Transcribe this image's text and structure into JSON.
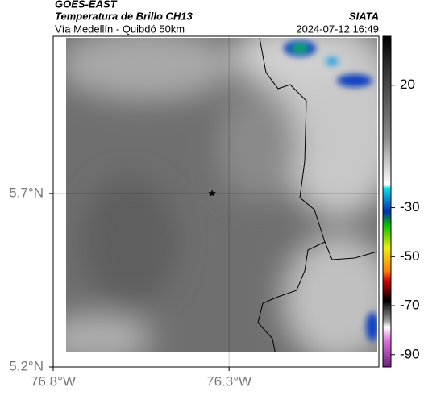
{
  "header": {
    "satellite": "GOES-EAST",
    "product": "Temperatura de Brillo CH13",
    "region": "Vía Medellín - Quibdó 50km",
    "source": "SIATA",
    "datetime": "2024-07-12 16:49"
  },
  "chart_data": {
    "type": "map",
    "xlim": [
      -76.8,
      -75.874
    ],
    "ylim": [
      5.2,
      6.153
    ],
    "xticks": [
      {
        "value": -76.8,
        "label": "76.8°W"
      },
      {
        "value": -76.3,
        "label": "76.3°W"
      }
    ],
    "yticks": [
      {
        "value": 5.2,
        "label": "5.2°N"
      },
      {
        "value": 5.7,
        "label": "5.7°N"
      }
    ],
    "grid": true,
    "marker": {
      "x": -76.348,
      "y": 5.7
    },
    "colorbar": {
      "lim": [
        40,
        -95
      ],
      "ticks": [
        20,
        -30,
        -50,
        -70,
        -90
      ]
    }
  }
}
